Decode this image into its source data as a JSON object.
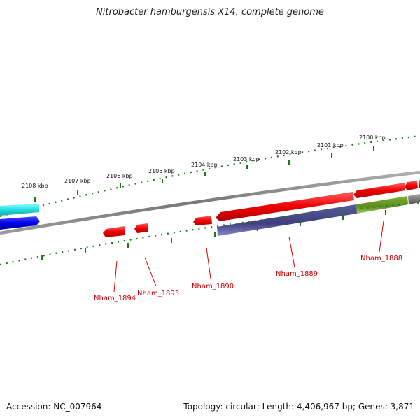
{
  "title": "Nitrobacter hamburgensis X14, complete genome",
  "accession": "Accession: NC_007964",
  "summary": "Topology: circular; Length: 4,406,967 bp; Genes: 3,871",
  "ticks": [
    "2108 kbp",
    "2107 kbp",
    "2106 kbp",
    "2105 kbp",
    "2104 kbp",
    "2103 kbp",
    "2102 kbp",
    "2101 kbp",
    "2100 kbp"
  ],
  "genes": [
    "Nham_1894",
    "Nham_1893",
    "Nham_1890",
    "Nham_1889",
    "Nham_1888"
  ],
  "colors": {
    "red": "#ee0000",
    "cyan": "#22dddd",
    "blue": "#0000ee",
    "slate": "#444488",
    "olive": "#669922",
    "gray": "#808080",
    "tick_green": "#1a7a1a",
    "label_red": "#cc0000"
  }
}
